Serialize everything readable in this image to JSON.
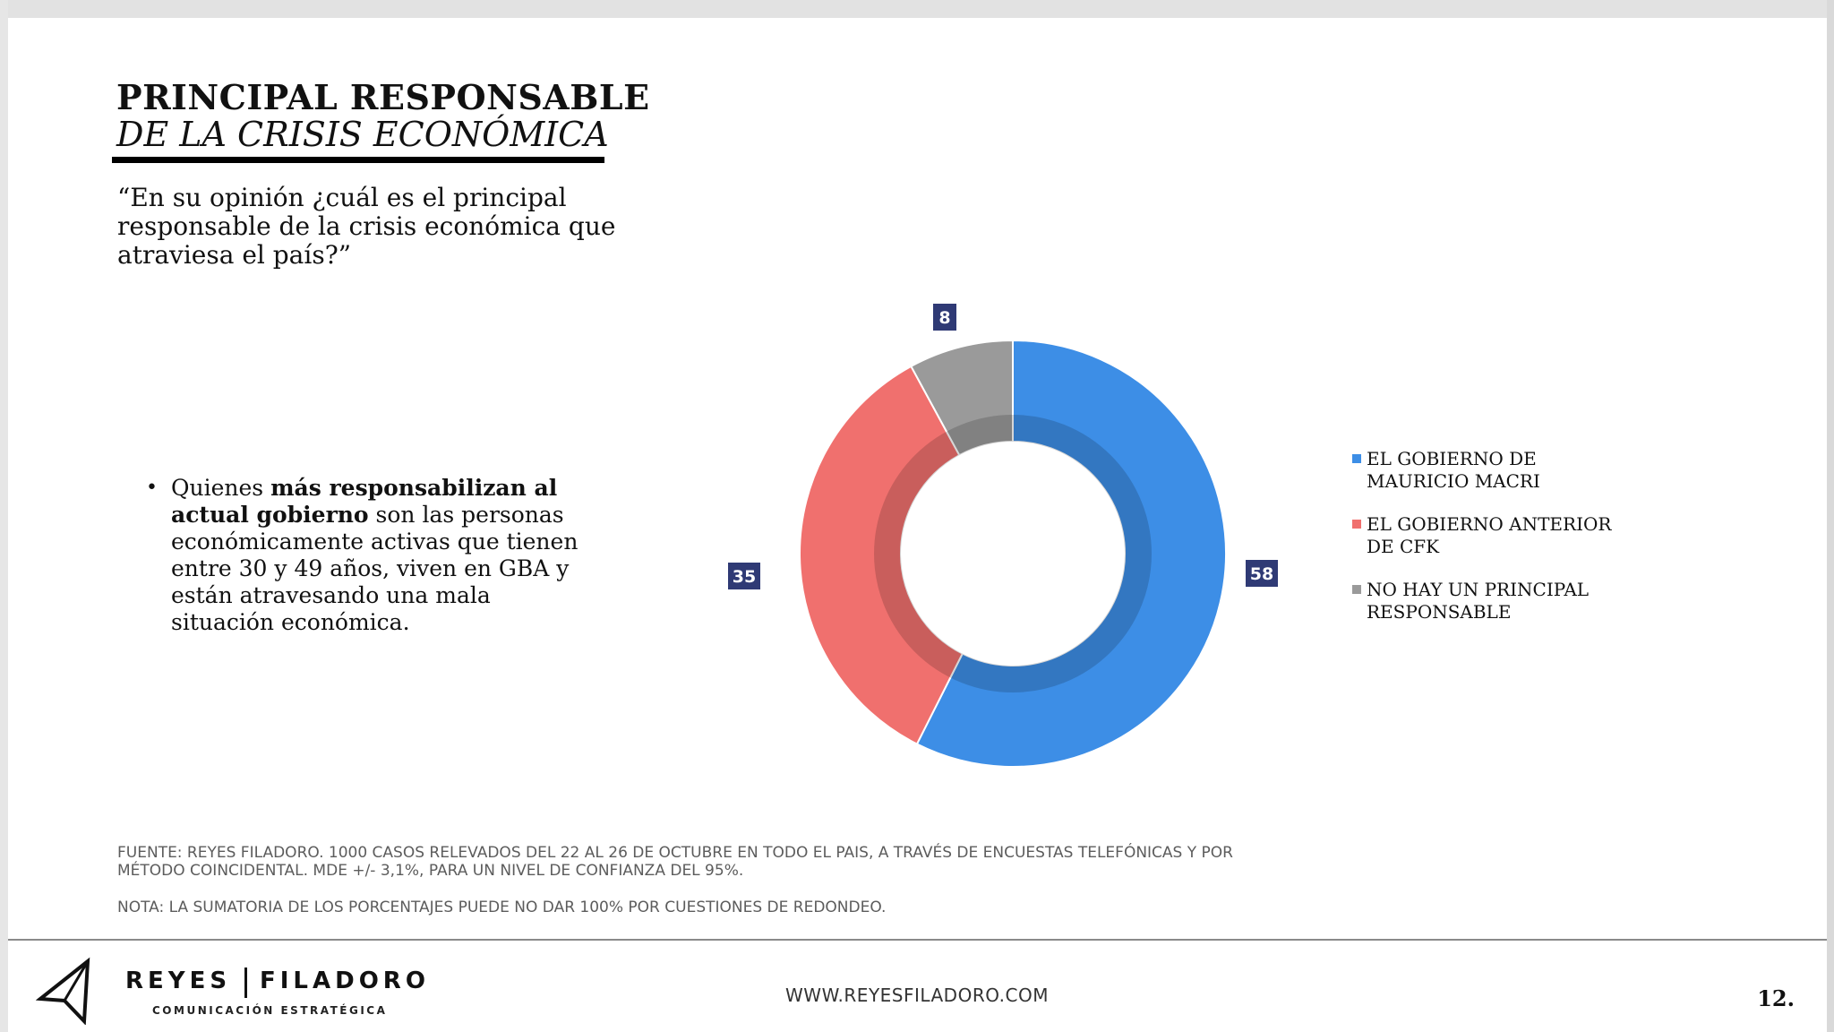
{
  "header": {
    "title_line1": "PRINCIPAL RESPONSABLE",
    "title_line2": "DE LA CRISIS ECONÓMICA"
  },
  "question": "“En su opinión ¿cuál es el principal responsable de la crisis económica que atraviesa el país?”",
  "insight": {
    "bullet": "•",
    "pre": "Quienes ",
    "bold": "más responsabilizan al actual gobierno",
    "post": " son las personas económicamente activas que tienen entre 30 y 49 años, viven en GBA y están atravesando una mala situación económica."
  },
  "chart_data": {
    "type": "pie",
    "variant": "donut",
    "categories": [
      "EL GOBIERNO DE MAURICIO MACRI",
      "EL GOBIERNO ANTERIOR DE CFK",
      "NO HAY UN PRINCIPAL RESPONSABLE"
    ],
    "values": [
      58,
      35,
      8
    ],
    "colors": [
      "#3d8ee6",
      "#f0706e",
      "#9a9a9a"
    ],
    "label_bg": "#2f3a75",
    "legend_position": "right"
  },
  "legend": [
    {
      "label": "EL GOBIERNO DE MAURICIO MACRI",
      "color": "#3d8ee6"
    },
    {
      "label": "EL GOBIERNO ANTERIOR DE CFK",
      "color": "#f0706e"
    },
    {
      "label": "NO HAY UN PRINCIPAL RESPONSABLE",
      "color": "#9a9a9a"
    }
  ],
  "footer": {
    "source": "FUENTE: REYES FILADORO. 1000 CASOS RELEVADOS DEL 22 AL 26 DE OCTUBRE EN TODO EL PAIS, A TRAVÉS DE ENCUESTAS TELEFÓNICAS Y POR MÉTODO COINCIDENTAL. MDE +/- 3,1%, PARA UN NIVEL DE CONFIANZA DEL 95%.",
    "note": "NOTA: LA SUMATORIA DE LOS PORCENTAJES PUEDE NO DAR 100% POR CUESTIONES DE REDONDEO.",
    "brand_part1": "REYES",
    "brand_part2": "FILADORO",
    "tagline": "COMUNICACIÓN ESTRATÉGICA",
    "website": "WWW.REYESFILADORO.COM",
    "page_number": "12."
  },
  "icons": {
    "logo": "paper-plane-icon"
  }
}
